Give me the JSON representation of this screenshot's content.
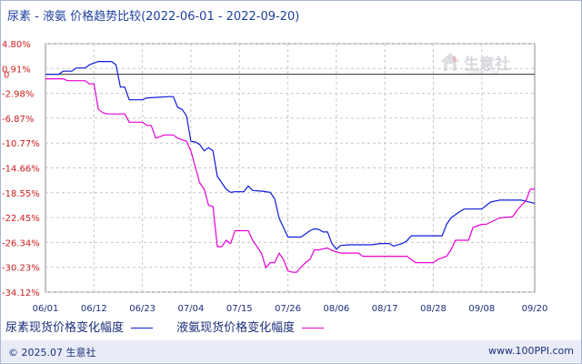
{
  "title": "尿素 - 液氨 价格趋势比较(2022-06-01 - 2022-09-20)",
  "watermark": {
    "text": "生意社",
    "sub": "100PPI.COM"
  },
  "footer": {
    "left": "© 2025.07 生意社",
    "right": "www.100PPI.com"
  },
  "colors": {
    "series1": "#0d1adc",
    "series2": "#e600d6",
    "grid": "#c6c6c6",
    "zero_line": "#2e2e2e"
  },
  "chart_data": {
    "type": "line",
    "y_ticks": [
      "4.80%",
      "0.91%",
      "0",
      "-2.98%",
      "-6.87%",
      "-10.77%",
      "-14.66%",
      "-18.55%",
      "-22.45%",
      "-26.34%",
      "-30.23%",
      "-34.12%"
    ],
    "y_tick_values": [
      4.8,
      0.91,
      0,
      -2.98,
      -6.87,
      -10.77,
      -14.66,
      -18.55,
      -22.45,
      -26.34,
      -30.23,
      -34.12
    ],
    "ylim": [
      -34.12,
      4.8
    ],
    "x_ticks": [
      "06/01",
      "06/12",
      "06/23",
      "07/04",
      "07/15",
      "07/26",
      "08/06",
      "08/17",
      "08/28",
      "09/08",
      "09/20"
    ],
    "x_tick_days": [
      0,
      11,
      22,
      33,
      44,
      55,
      66,
      77,
      88,
      99,
      111
    ],
    "x_day_labels": "days after 2022-06-01",
    "series": [
      {
        "name": "尿素现货价格变化幅度",
        "points": [
          [
            0,
            0
          ],
          [
            3,
            0
          ],
          [
            4,
            0.5
          ],
          [
            6,
            0.5
          ],
          [
            7,
            1
          ],
          [
            9,
            1
          ],
          [
            10,
            1.5
          ],
          [
            12,
            2
          ],
          [
            15,
            2
          ],
          [
            16,
            1.5
          ],
          [
            17,
            -2
          ],
          [
            18,
            -2
          ],
          [
            19,
            -4
          ],
          [
            22,
            -4
          ],
          [
            23,
            -3.7
          ],
          [
            28,
            -3.5
          ],
          [
            29,
            -3.5
          ],
          [
            30,
            -5.2
          ],
          [
            31,
            -5.5
          ],
          [
            32,
            -6.5
          ],
          [
            33,
            -10.5
          ],
          [
            34,
            -10.6
          ],
          [
            35,
            -11
          ],
          [
            36,
            -12
          ],
          [
            37,
            -11.5
          ],
          [
            38,
            -12
          ],
          [
            39,
            -16
          ],
          [
            40,
            -17
          ],
          [
            41,
            -18
          ],
          [
            42,
            -18.5
          ],
          [
            43,
            -18.4
          ],
          [
            45,
            -18.4
          ],
          [
            46,
            -17.5
          ],
          [
            47,
            -18.2
          ],
          [
            49,
            -18.3
          ],
          [
            51,
            -18.5
          ],
          [
            52,
            -19.5
          ],
          [
            53,
            -22.5
          ],
          [
            54,
            -24
          ],
          [
            55,
            -25.5
          ],
          [
            57,
            -25.5
          ],
          [
            58,
            -25.5
          ],
          [
            59,
            -25
          ],
          [
            60,
            -24.5
          ],
          [
            61,
            -24.2
          ],
          [
            62,
            -24.3
          ],
          [
            63,
            -24.7
          ],
          [
            64,
            -24.7
          ],
          [
            65,
            -26.5
          ],
          [
            66,
            -27.4
          ],
          [
            67,
            -26.8
          ],
          [
            69,
            -26.7
          ],
          [
            74,
            -26.7
          ],
          [
            76,
            -26.5
          ],
          [
            78,
            -26.5
          ],
          [
            79,
            -26.9
          ],
          [
            81,
            -26.5
          ],
          [
            82,
            -26.1
          ],
          [
            83,
            -25.3
          ],
          [
            86,
            -25.3
          ],
          [
            88,
            -25.3
          ],
          [
            89,
            -25.3
          ],
          [
            90,
            -25.3
          ],
          [
            91,
            -23.5
          ],
          [
            92,
            -22.5
          ],
          [
            94,
            -21.5
          ],
          [
            95,
            -21.1
          ],
          [
            99,
            -21.1
          ],
          [
            101,
            -20
          ],
          [
            103,
            -19.7
          ],
          [
            106,
            -19.7
          ],
          [
            108,
            -19.7
          ],
          [
            111,
            -20.2
          ]
        ]
      },
      {
        "name": "液氨现货价格变化幅度",
        "points": [
          [
            0,
            -0.7
          ],
          [
            4,
            -0.7
          ],
          [
            5,
            -1
          ],
          [
            9,
            -1
          ],
          [
            10,
            -1.5
          ],
          [
            11,
            -1.5
          ],
          [
            12,
            -5.5
          ],
          [
            13,
            -6
          ],
          [
            14,
            -6.2
          ],
          [
            18,
            -6.2
          ],
          [
            19,
            -7.5
          ],
          [
            22,
            -7.5
          ],
          [
            23,
            -8
          ],
          [
            24,
            -8
          ],
          [
            25,
            -10
          ],
          [
            27,
            -9.5
          ],
          [
            29,
            -9.5
          ],
          [
            30,
            -10
          ],
          [
            32,
            -10.5
          ],
          [
            33,
            -12
          ],
          [
            34,
            -14.5
          ],
          [
            35,
            -17
          ],
          [
            36,
            -18
          ],
          [
            37,
            -20.5
          ],
          [
            38,
            -20.7
          ],
          [
            39,
            -27
          ],
          [
            40,
            -27
          ],
          [
            41,
            -26
          ],
          [
            42,
            -26.5
          ],
          [
            43,
            -24.5
          ],
          [
            46,
            -24.5
          ],
          [
            47,
            -26
          ],
          [
            48,
            -27
          ],
          [
            49,
            -28
          ],
          [
            50,
            -30.3
          ],
          [
            51,
            -29.5
          ],
          [
            52,
            -29.5
          ],
          [
            53,
            -28
          ],
          [
            54,
            -29
          ],
          [
            55,
            -30.8
          ],
          [
            56,
            -31
          ],
          [
            57,
            -31
          ],
          [
            58,
            -30.2
          ],
          [
            59,
            -29.5
          ],
          [
            60,
            -29
          ],
          [
            61,
            -27.5
          ],
          [
            62,
            -27.5
          ],
          [
            64,
            -27.2
          ],
          [
            65,
            -27.6
          ],
          [
            67,
            -28
          ],
          [
            71,
            -28
          ],
          [
            72,
            -28.5
          ],
          [
            78,
            -28.5
          ],
          [
            82,
            -28.5
          ],
          [
            84,
            -29.5
          ],
          [
            88,
            -29.5
          ],
          [
            89,
            -29
          ],
          [
            91,
            -28.5
          ],
          [
            92,
            -27.5
          ],
          [
            93,
            -26
          ],
          [
            96,
            -26
          ],
          [
            97,
            -24
          ],
          [
            99,
            -23.5
          ],
          [
            100,
            -23.5
          ],
          [
            103,
            -22.5
          ],
          [
            106,
            -22.3
          ],
          [
            107,
            -21.3
          ],
          [
            108,
            -20.5
          ],
          [
            109,
            -19.8
          ],
          [
            110,
            -18
          ],
          [
            111,
            -18
          ]
        ]
      }
    ]
  }
}
